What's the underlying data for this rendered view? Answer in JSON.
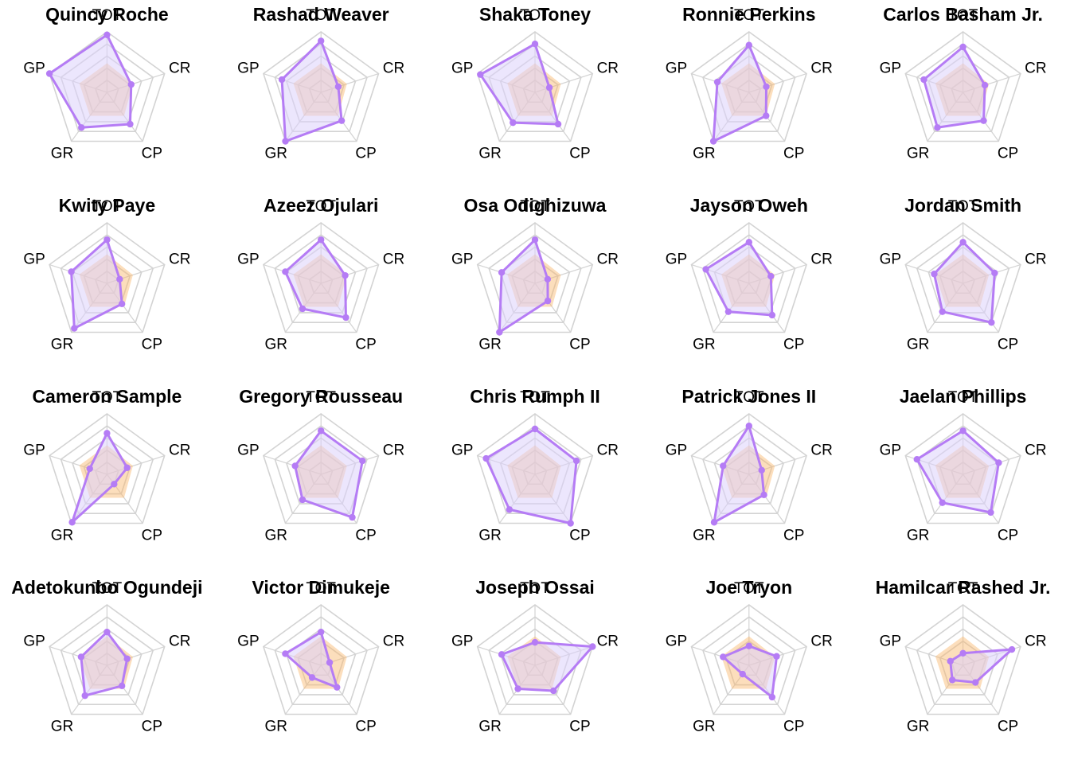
{
  "chart_data": {
    "type": "radar",
    "axes": [
      "TOT",
      "CR",
      "CP",
      "GR",
      "GP"
    ],
    "scale": [
      0,
      100
    ],
    "rings": 5,
    "colors": {
      "player_stroke": "#b57cf5",
      "player_fill": "#dcd1fc",
      "player_fill_opacity": 0.55,
      "baseline_fill": "#f9b56b",
      "baseline_fill_opacity": 0.45
    },
    "baseline": {
      "values": [
        48,
        45,
        48,
        48,
        48
      ]
    },
    "players": [
      {
        "name": "Quincy Roche",
        "values": [
          95,
          42,
          65,
          72,
          100
        ]
      },
      {
        "name": "Rashad Weaver",
        "values": [
          85,
          30,
          58,
          100,
          68
        ]
      },
      {
        "name": "Shaka Toney",
        "values": [
          80,
          25,
          65,
          62,
          95
        ]
      },
      {
        "name": "Ronnie Perkins",
        "values": [
          78,
          30,
          48,
          100,
          55
        ]
      },
      {
        "name": "Carlos Basham Jr.",
        "values": [
          75,
          38,
          58,
          72,
          68
        ]
      },
      {
        "name": "Kwity Paye",
        "values": [
          72,
          22,
          42,
          92,
          62
        ]
      },
      {
        "name": "Azeez Ojulari",
        "values": [
          72,
          42,
          70,
          52,
          62
        ]
      },
      {
        "name": "Osa Odighizuwa",
        "values": [
          72,
          22,
          36,
          100,
          58
        ]
      },
      {
        "name": "Jayson Oweh",
        "values": [
          68,
          38,
          65,
          58,
          75
        ]
      },
      {
        "name": "Jordan Smith",
        "values": [
          68,
          55,
          80,
          58,
          50
        ]
      },
      {
        "name": "Cameron Sample",
        "values": [
          68,
          35,
          20,
          98,
          30
        ]
      },
      {
        "name": "Gregory Rousseau",
        "values": [
          72,
          72,
          88,
          52,
          45
        ]
      },
      {
        "name": "Chris Rumph II",
        "values": [
          75,
          72,
          100,
          72,
          85
        ]
      },
      {
        "name": "Patrick Jones II",
        "values": [
          80,
          22,
          42,
          98,
          45
        ]
      },
      {
        "name": "Jaelan Phillips",
        "values": [
          72,
          62,
          78,
          58,
          80
        ]
      },
      {
        "name": "Adetokunbo Ogundeji",
        "values": [
          55,
          35,
          42,
          62,
          45
        ]
      },
      {
        "name": "Victor Dimukeje",
        "values": [
          55,
          15,
          45,
          25,
          62
        ]
      },
      {
        "name": "Joseph Ossai",
        "values": [
          38,
          100,
          52,
          48,
          58
        ]
      },
      {
        "name": "Joe Tryon",
        "values": [
          32,
          48,
          65,
          18,
          45
        ]
      },
      {
        "name": "Hamilcar Rashed Jr.",
        "values": [
          20,
          85,
          35,
          30,
          22
        ]
      }
    ]
  }
}
